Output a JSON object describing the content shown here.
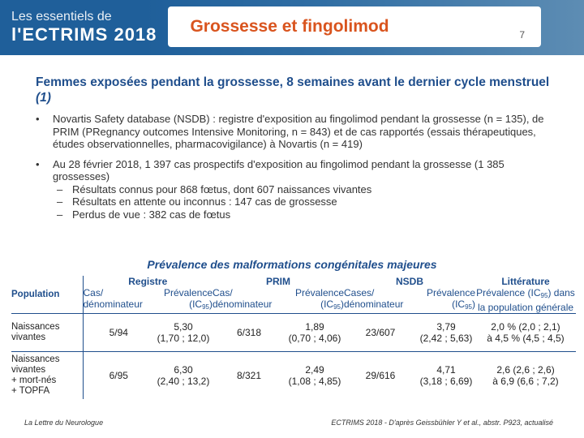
{
  "header": {
    "brand_line1": "Les essentiels de",
    "brand_line2": "l'ECTRIMS 2018",
    "title": "Grossesse et fingolimod",
    "page_number": "7"
  },
  "subtitle": "Femmes exposées pendant la grossesse, 8 semaines avant le dernier cycle menstruel",
  "subtitle_ref": "(1)",
  "bullets": [
    "Novartis Safety database (NSDB) : registre d'exposition au fingolimod pendant la grossesse (n = 135), de PRIM (PRegnancy outcomes Intensive Monitoring, n = 843) et de cas rapportés (essais thérapeutiques, études observationnelles, pharmacovigilance) à Novartis (n = 419)",
    "Au 28 février 2018, 1 397 cas prospectifs d'exposition au fingolimod pendant la grossesse (1 385 grossesses)"
  ],
  "sub_bullets": [
    "Résultats connus pour 868 fœtus, dont 607 naissances vivantes",
    "Résultats en attente ou inconnus : 147 cas de grossesse",
    "Perdus de vue : 382 cas de fœtus"
  ],
  "table": {
    "title": "Prévalence des malformations congénitales majeures",
    "population_header": "Population",
    "groups": [
      "Registre",
      "PRIM",
      "NSDB",
      "Littérature"
    ],
    "col_cas": [
      "Cas/",
      "Cas/",
      "Cases/"
    ],
    "col_denominateur": "dénominateur",
    "col_prevalence": "Prévalence",
    "col_ic": "(IC",
    "col_ic_sub": "95",
    "col_ic_end": ")",
    "lit_line1": "Prévalence (IC",
    "lit_line1_end": ") dans",
    "lit_line2": "la population générale",
    "rows": [
      {
        "label": [
          "Naissances",
          "vivantes"
        ],
        "reg_cas": "5/94",
        "reg_prev": "5,30",
        "reg_ic": "(1,70 ; 12,0)",
        "prim_cas": "6/318",
        "prim_prev": "1,89",
        "prim_ic": "(0,70 ; 4,06)",
        "nsdb_cas": "23/607",
        "nsdb_prev": "3,79",
        "nsdb_ic": "(2,42 ; 5,63)",
        "lit_1": "2,0 % (2,0 ; 2,1)",
        "lit_2": "à 4,5 % (4,5 ; 4,5)"
      },
      {
        "label": [
          "Naissances",
          "vivantes",
          "+ mort-nés",
          "+ TOPFA"
        ],
        "reg_cas": "6/95",
        "reg_prev": "6,30",
        "reg_ic": "(2,40 ; 13,2)",
        "prim_cas": "8/321",
        "prim_prev": "2,49",
        "prim_ic": "(1,08 ; 4,85)",
        "nsdb_cas": "29/616",
        "nsdb_prev": "4,71",
        "nsdb_ic": "(3,18 ; 6,69)",
        "lit_1": "2,6 (2,6 ; 2,6)",
        "lit_2": "à 6,9 (6,6 ; 7,2)"
      }
    ]
  },
  "footer": {
    "left": "La Lettre du Neurologue",
    "right": "ECTRIMS 2018 - D'après Geissbühler Y et al., abstr. P923, actualisé"
  }
}
